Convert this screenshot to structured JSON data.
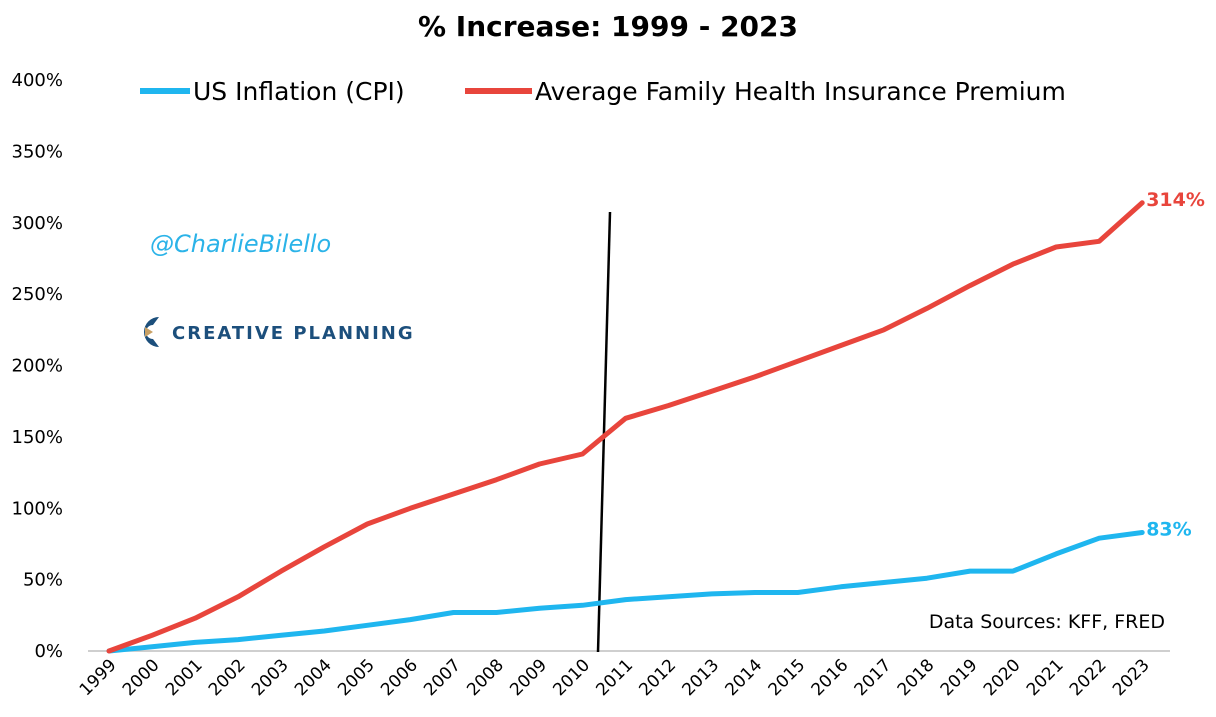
{
  "chart_data": {
    "type": "line",
    "title": "% Increase: 1999 - 2023",
    "xlabel": "",
    "ylabel": "",
    "ylim": [
      0,
      400
    ],
    "yticks": [
      "0%",
      "50%",
      "100%",
      "150%",
      "200%",
      "250%",
      "300%",
      "350%",
      "400%"
    ],
    "ytick_values": [
      0,
      50,
      100,
      150,
      200,
      250,
      300,
      350,
      400
    ],
    "categories": [
      "1999",
      "2000",
      "2001",
      "2002",
      "2003",
      "2004",
      "2005",
      "2006",
      "2007",
      "2008",
      "2009",
      "2010",
      "2011",
      "2012",
      "2013",
      "2014",
      "2015",
      "2016",
      "2017",
      "2018",
      "2019",
      "2020",
      "2021",
      "2022",
      "2023"
    ],
    "series": [
      {
        "name": "US Inflation (CPI)",
        "color": "#1fb6ef",
        "values": [
          0,
          3,
          6,
          8,
          11,
          14,
          18,
          22,
          27,
          27,
          30,
          32,
          36,
          38,
          40,
          41,
          41,
          45,
          48,
          51,
          56,
          56,
          68,
          79,
          83
        ],
        "end_label": "83%"
      },
      {
        "name": "Average Family Health Insurance Premium",
        "color": "#e8453c",
        "values": [
          0,
          11,
          23,
          38,
          56,
          73,
          89,
          100,
          110,
          120,
          131,
          138,
          163,
          172,
          182,
          192,
          203,
          214,
          225,
          240,
          256,
          271,
          283,
          287,
          314
        ],
        "end_label": "314%"
      }
    ],
    "grid": false,
    "legend_position": "top",
    "annotation_line": "vertical line between 2010 and 2011",
    "watermark": "@CharlieBilello",
    "brand": "CREATIVE PLANNING",
    "source": "Data Sources: KFF, FRED"
  }
}
